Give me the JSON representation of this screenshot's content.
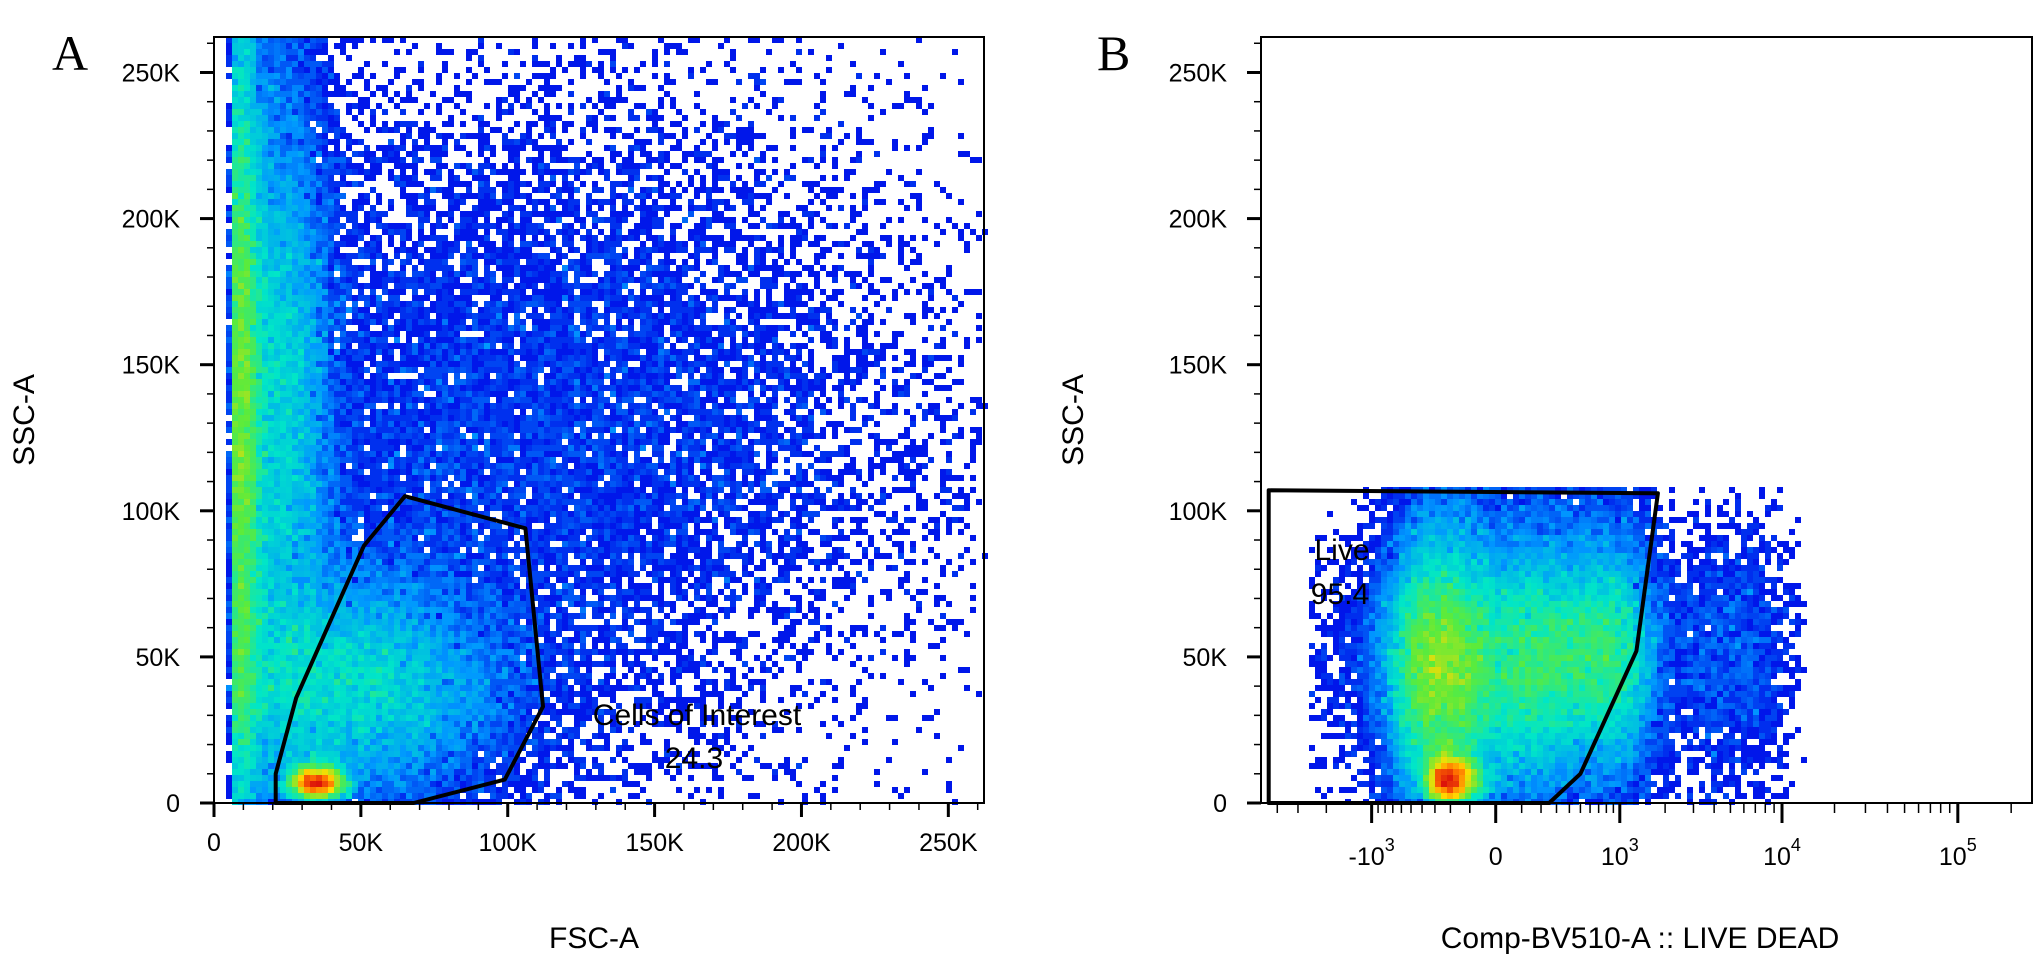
{
  "chart_data": [
    {
      "type": "scatter",
      "subtype": "flow-cytometry-density-plot",
      "panel_label": "A",
      "xlabel": "FSC-A",
      "ylabel": "SSC-A",
      "x_scale": "linear",
      "y_scale": "linear",
      "xlim": [
        0,
        262144
      ],
      "ylim": [
        0,
        262144
      ],
      "x_ticks": [
        {
          "value": 0,
          "label": "0"
        },
        {
          "value": 50000,
          "label": "50K"
        },
        {
          "value": 100000,
          "label": "100K"
        },
        {
          "value": 150000,
          "label": "150K"
        },
        {
          "value": 200000,
          "label": "200K"
        },
        {
          "value": 250000,
          "label": "250K"
        }
      ],
      "y_ticks": [
        {
          "value": 0,
          "label": "0"
        },
        {
          "value": 50000,
          "label": "50K"
        },
        {
          "value": 100000,
          "label": "100K"
        },
        {
          "value": 150000,
          "label": "150K"
        },
        {
          "value": 200000,
          "label": "200K"
        },
        {
          "value": 250000,
          "label": "250K"
        }
      ],
      "gate": {
        "name": "Cells of Interest",
        "percent": "24.3",
        "polygon": [
          [
            21000,
            0
          ],
          [
            21000,
            10000
          ],
          [
            28000,
            36000
          ],
          [
            51000,
            88000
          ],
          [
            65000,
            105000
          ],
          [
            106000,
            94000
          ],
          [
            112000,
            33000
          ],
          [
            99000,
            8000
          ],
          [
            68000,
            0
          ]
        ]
      },
      "density_clusters": [
        {
          "cx": 9000,
          "cy": 130000,
          "sx": 4000,
          "sy": 120000,
          "weight": 0.3
        },
        {
          "cx": 22000,
          "cy": 140000,
          "sx": 10000,
          "sy": 90000,
          "weight": 0.22
        },
        {
          "cx": 45000,
          "cy": 40000,
          "sx": 30000,
          "sy": 30000,
          "weight": 0.25
        },
        {
          "cx": 35000,
          "cy": 7000,
          "sx": 5000,
          "sy": 4000,
          "weight": 0.05
        },
        {
          "cx": 110000,
          "cy": 130000,
          "sx": 70000,
          "sy": 80000,
          "weight": 0.18
        }
      ]
    },
    {
      "type": "scatter",
      "subtype": "flow-cytometry-density-plot",
      "panel_label": "B",
      "xlabel": "Comp-BV510-A :: LIVE DEAD",
      "ylabel": "SSC-A",
      "x_scale": "biexponential",
      "y_scale": "linear",
      "ylim": [
        0,
        262144
      ],
      "x_ticks": [
        {
          "value": -1000,
          "label": "-10",
          "exp": "3"
        },
        {
          "value": 0,
          "label": "0"
        },
        {
          "value": 1000,
          "label": "10",
          "exp": "3"
        },
        {
          "value": 10000,
          "label": "10",
          "exp": "4"
        },
        {
          "value": 100000,
          "label": "10",
          "exp": "5"
        }
      ],
      "y_ticks": [
        {
          "value": 0,
          "label": "0"
        },
        {
          "value": 50000,
          "label": "50K"
        },
        {
          "value": 100000,
          "label": "100K"
        },
        {
          "value": 150000,
          "label": "150K"
        },
        {
          "value": 200000,
          "label": "200K"
        },
        {
          "value": 250000,
          "label": "250K"
        }
      ],
      "gate": {
        "name": "Live",
        "percent": "95.4",
        "polygon": [
          [
            -4500,
            0
          ],
          [
            -4500,
            107000
          ],
          [
            1800,
            106000
          ],
          [
            1300,
            52000
          ],
          [
            500,
            10000
          ],
          [
            250,
            0
          ]
        ]
      },
      "density_clusters": [
        {
          "cx": -150,
          "cy": 45000,
          "sx": 250,
          "sy": 35000,
          "weight": 0.45
        },
        {
          "cx": 350,
          "cy": 50000,
          "sx": 600,
          "sy": 30000,
          "weight": 0.4
        },
        {
          "cx": -200,
          "cy": 8000,
          "sx": 80,
          "sy": 6000,
          "weight": 0.1
        },
        {
          "cx": 3000,
          "cy": 50000,
          "sx": 3500,
          "sy": 30000,
          "weight": 0.05
        }
      ]
    }
  ]
}
